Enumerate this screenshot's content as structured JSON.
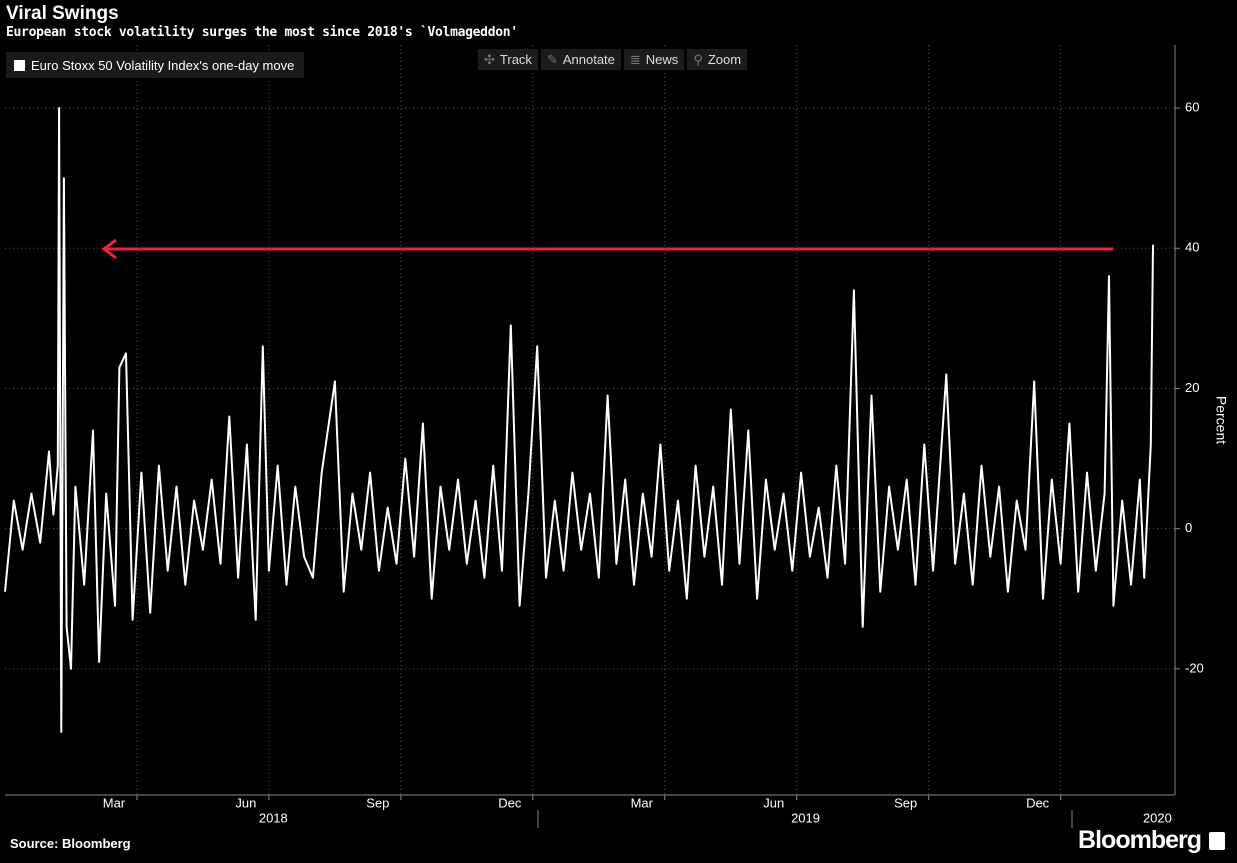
{
  "chart_data": {
    "type": "line",
    "title": "Viral Swings",
    "subtitle": "European stock volatility surges the most since 2018's `Volmageddon'",
    "y_label": "Percent",
    "source": "Source: Bloomberg",
    "brand": "Bloomberg",
    "toolbar": [
      "Track",
      "Annotate",
      "News",
      "Zoom"
    ],
    "x": [
      -1.0,
      -0.8,
      -0.6,
      -0.4,
      -0.2,
      0.0,
      0.1,
      0.2,
      0.23,
      0.28,
      0.34,
      0.4,
      0.5,
      0.6,
      0.8,
      1.0,
      1.14,
      1.3,
      1.5,
      1.6,
      1.75,
      1.9,
      2.1,
      2.3,
      2.5,
      2.7,
      2.9,
      3.1,
      3.3,
      3.5,
      3.7,
      3.9,
      4.1,
      4.3,
      4.5,
      4.7,
      4.86,
      5.0,
      5.2,
      5.4,
      5.6,
      5.8,
      6.0,
      6.2,
      6.5,
      6.7,
      6.9,
      7.1,
      7.3,
      7.5,
      7.7,
      7.9,
      8.1,
      8.3,
      8.5,
      8.7,
      8.9,
      9.1,
      9.3,
      9.5,
      9.7,
      9.9,
      10.1,
      10.3,
      10.5,
      10.7,
      10.9,
      11.1,
      11.3,
      11.5,
      11.7,
      11.9,
      12.1,
      12.3,
      12.5,
      12.7,
      12.9,
      13.1,
      13.3,
      13.5,
      13.7,
      13.9,
      14.1,
      14.3,
      14.5,
      14.7,
      14.9,
      15.1,
      15.3,
      15.5,
      15.7,
      15.9,
      16.1,
      16.3,
      16.5,
      16.7,
      16.9,
      17.1,
      17.3,
      17.5,
      17.7,
      17.9,
      18.1,
      18.3,
      18.5,
      18.7,
      18.9,
      19.1,
      19.3,
      19.5,
      19.7,
      19.9,
      20.1,
      20.4,
      20.6,
      20.8,
      21.0,
      21.2,
      21.4,
      21.6,
      21.8,
      22.0,
      22.2,
      22.4,
      22.6,
      22.8,
      23.0,
      23.2,
      23.4,
      23.6,
      23.8,
      24.0,
      24.1,
      24.2,
      24.4,
      24.6,
      24.8,
      24.9,
      25.05,
      25.1
    ],
    "series": [
      {
        "name": "Euro Stoxx 50 Volatility Index's one-day move",
        "color": "#ffffff",
        "values": [
          -9,
          4,
          -3,
          5,
          -2,
          11,
          2,
          9,
          60,
          -29,
          50,
          -14,
          -20,
          6,
          -8,
          14,
          -19,
          5,
          -11,
          23,
          25,
          -13,
          8,
          -12,
          9,
          -6,
          6,
          -8,
          4,
          -3,
          7,
          -5,
          16,
          -7,
          12,
          -13,
          26,
          -6,
          9,
          -8,
          6,
          -4,
          -7,
          8,
          21,
          -9,
          5,
          -3,
          8,
          -6,
          3,
          -5,
          10,
          -4,
          15,
          -10,
          6,
          -3,
          7,
          -5,
          4,
          -7,
          9,
          -6,
          29,
          -11,
          5,
          26,
          -7,
          4,
          -6,
          8,
          -3,
          5,
          -7,
          19,
          -5,
          7,
          -8,
          5,
          -4,
          12,
          -6,
          4,
          -10,
          9,
          -4,
          6,
          -8,
          17,
          -5,
          14,
          -10,
          7,
          -3,
          5,
          -6,
          8,
          -4,
          3,
          -7,
          9,
          -5,
          34,
          -14,
          19,
          -9,
          6,
          -3,
          7,
          -8,
          12,
          -6,
          22,
          -5,
          5,
          -8,
          9,
          -4,
          6,
          -9,
          4,
          -3,
          21,
          -10,
          7,
          -5,
          15,
          -9,
          8,
          -6,
          5,
          36,
          -11,
          4,
          -8,
          7,
          -7,
          12,
          40.5
        ]
      }
    ],
    "xlim": [
      -1.0,
      25.6
    ],
    "xticks": [
      {
        "value": 2,
        "label": "Mar"
      },
      {
        "value": 5,
        "label": "Jun"
      },
      {
        "value": 8,
        "label": "Sep"
      },
      {
        "value": 11,
        "label": "Dec"
      },
      {
        "value": 14,
        "label": "Mar"
      },
      {
        "value": 17,
        "label": "Jun"
      },
      {
        "value": 20,
        "label": "Sep"
      },
      {
        "value": 23,
        "label": "Dec"
      },
      {
        "value": 25.2,
        "label": "2020"
      }
    ],
    "year_ticks": [
      {
        "value": 5.1,
        "label": "2018"
      },
      {
        "value": 17.2,
        "label": "2019"
      }
    ],
    "ylim": [
      -38,
      69
    ],
    "yticks": [
      -20,
      0,
      20,
      40,
      60
    ],
    "grid": true
  }
}
